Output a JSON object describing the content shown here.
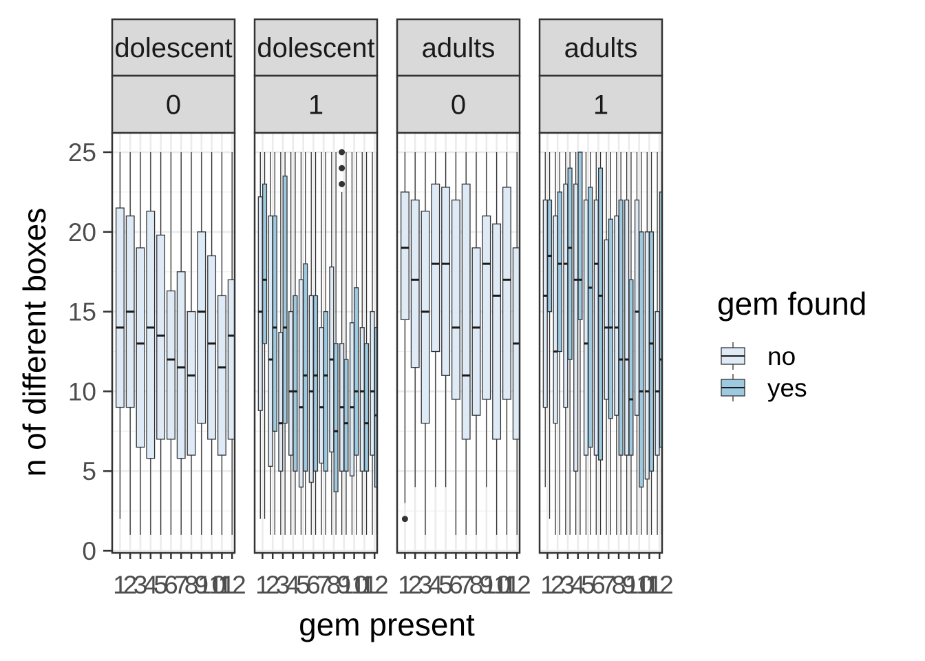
{
  "chart_data": {
    "type": "boxplot",
    "xlabel": "gem present",
    "ylabel": "n of different boxes",
    "ylim": [
      0,
      25.5
    ],
    "yticks": [
      0,
      5,
      10,
      15,
      20,
      25
    ],
    "x_categories": [
      "1",
      "2",
      "3",
      "4",
      "5",
      "6",
      "7",
      "8",
      "9",
      "10",
      "11",
      "12"
    ],
    "x_tick_labels": [
      "1",
      "2",
      "3",
      "4",
      "5",
      "6",
      "7",
      "8",
      "9",
      "10",
      "11",
      "12"
    ],
    "grid": true,
    "legend": {
      "title": "gem found",
      "position": "right",
      "items": [
        {
          "label": "no",
          "color": "#deebf7"
        },
        {
          "label": "yes",
          "color": "#9ecae1"
        }
      ]
    },
    "panels": [
      {
        "strip_top": "dolescent",
        "strip_bottom": "0",
        "series": [
          {
            "group": "no",
            "boxes": [
              {
                "x": 1,
                "min": 2,
                "q1": 9,
                "median": 14,
                "q3": 21.5,
                "max": 25
              },
              {
                "x": 2,
                "min": 1,
                "q1": 9,
                "median": 15,
                "q3": 21,
                "max": 25
              },
              {
                "x": 3,
                "min": 1,
                "q1": 6.5,
                "median": 13,
                "q3": 19,
                "max": 25
              },
              {
                "x": 4,
                "min": 1,
                "q1": 5.8,
                "median": 14,
                "q3": 21.3,
                "max": 25
              },
              {
                "x": 5,
                "min": 1,
                "q1": 7,
                "median": 13.5,
                "q3": 19.8,
                "max": 25
              },
              {
                "x": 6,
                "min": 1,
                "q1": 7,
                "median": 12,
                "q3": 16.3,
                "max": 25
              },
              {
                "x": 7,
                "min": 1,
                "q1": 5.8,
                "median": 11.5,
                "q3": 17.5,
                "max": 25
              },
              {
                "x": 8,
                "min": 1,
                "q1": 6,
                "median": 11,
                "q3": 15,
                "max": 25
              },
              {
                "x": 9,
                "min": 1,
                "q1": 8,
                "median": 15,
                "q3": 20,
                "max": 25
              },
              {
                "x": 10,
                "min": 1,
                "q1": 7,
                "median": 13,
                "q3": 18.5,
                "max": 25
              },
              {
                "x": 11,
                "min": 1,
                "q1": 6,
                "median": 11.5,
                "q3": 16,
                "max": 25
              },
              {
                "x": 12,
                "min": 1,
                "q1": 7,
                "median": 13.5,
                "q3": 17,
                "max": 25
              }
            ]
          }
        ]
      },
      {
        "strip_top": "dolescent",
        "strip_bottom": "1",
        "series": [
          {
            "group": "no",
            "boxes": [
              {
                "x": 1,
                "min": 2,
                "q1": 8.8,
                "median": 15,
                "q3": 22.2,
                "max": 25
              },
              {
                "x": 2,
                "min": 1,
                "q1": 5.3,
                "median": 12,
                "q3": 21,
                "max": 25
              },
              {
                "x": 3,
                "min": 1,
                "q1": 5,
                "median": 8,
                "q3": 13.7,
                "max": 25
              },
              {
                "x": 4,
                "min": 1,
                "q1": 6,
                "median": 10,
                "q3": 15,
                "max": 25
              },
              {
                "x": 5,
                "min": 1,
                "q1": 4,
                "median": 9,
                "q3": 17,
                "max": 25
              },
              {
                "x": 6,
                "min": 1,
                "q1": 4.3,
                "median": 10,
                "q3": 16,
                "max": 25
              },
              {
                "x": 7,
                "min": 1,
                "q1": 5.5,
                "median": 9,
                "q3": 14,
                "max": 25
              },
              {
                "x": 8,
                "min": 1,
                "q1": 6.2,
                "median": 12,
                "q3": 17.8,
                "max": 25
              },
              {
                "x": 9,
                "min": 1,
                "q1": 5,
                "median": 9,
                "q3": 13,
                "max": 22.5,
                "outliers": [
                  23,
                  24,
                  25
                ]
              },
              {
                "x": 10,
                "min": 1,
                "q1": 4.7,
                "median": 9,
                "q3": 14.3,
                "max": 25
              },
              {
                "x": 11,
                "min": 1,
                "q1": 5,
                "median": 10,
                "q3": 14,
                "max": 25
              },
              {
                "x": 12,
                "min": 1,
                "q1": 6,
                "median": 10,
                "q3": 15,
                "max": 25
              }
            ]
          },
          {
            "group": "yes",
            "boxes": [
              {
                "x": 1,
                "min": 2,
                "q1": 13,
                "median": 17,
                "q3": 23,
                "max": 25
              },
              {
                "x": 2,
                "min": 1,
                "q1": 7.5,
                "median": 14,
                "q3": 21,
                "max": 25
              },
              {
                "x": 3,
                "min": 1,
                "q1": 8,
                "median": 14,
                "q3": 23.5,
                "max": 25
              },
              {
                "x": 4,
                "min": 1,
                "q1": 5,
                "median": 10,
                "q3": 16,
                "max": 25
              },
              {
                "x": 5,
                "min": 1,
                "q1": 5,
                "median": 11,
                "q3": 18,
                "max": 25
              },
              {
                "x": 6,
                "min": 1,
                "q1": 5,
                "median": 11,
                "q3": 16,
                "max": 25
              },
              {
                "x": 7,
                "min": 1,
                "q1": 5,
                "median": 11,
                "q3": 15,
                "max": 25
              },
              {
                "x": 8,
                "min": 1,
                "q1": 3.7,
                "median": 7.5,
                "q3": 13,
                "max": 25
              },
              {
                "x": 9,
                "min": 1,
                "q1": 5,
                "median": 8,
                "q3": 12,
                "max": 25
              },
              {
                "x": 10,
                "min": 1,
                "q1": 6,
                "median": 10,
                "q3": 16.5,
                "max": 25
              },
              {
                "x": 11,
                "min": 1,
                "q1": 5,
                "median": 8,
                "q3": 13,
                "max": 25
              },
              {
                "x": 12,
                "min": 1,
                "q1": 4,
                "median": 8.5,
                "q3": 14,
                "max": 25
              }
            ]
          }
        ]
      },
      {
        "strip_top": "adults",
        "strip_bottom": "0",
        "series": [
          {
            "group": "no",
            "boxes": [
              {
                "x": 1,
                "min": 3,
                "q1": 14.5,
                "median": 19,
                "q3": 22.5,
                "max": 25,
                "outliers": [
                  2
                ]
              },
              {
                "x": 2,
                "min": 4,
                "q1": 11.5,
                "median": 17,
                "q3": 22,
                "max": 25
              },
              {
                "x": 3,
                "min": 1,
                "q1": 8,
                "median": 15,
                "q3": 21.3,
                "max": 25
              },
              {
                "x": 4,
                "min": 4,
                "q1": 12.5,
                "median": 18,
                "q3": 23,
                "max": 25
              },
              {
                "x": 5,
                "min": 4,
                "q1": 11,
                "median": 18,
                "q3": 22.8,
                "max": 25
              },
              {
                "x": 6,
                "min": 1,
                "q1": 9.5,
                "median": 14,
                "q3": 22,
                "max": 25
              },
              {
                "x": 7,
                "min": 1,
                "q1": 7,
                "median": 11,
                "q3": 23,
                "max": 25
              },
              {
                "x": 8,
                "min": 1,
                "q1": 8.5,
                "median": 14,
                "q3": 19,
                "max": 25
              },
              {
                "x": 9,
                "min": 4,
                "q1": 9.5,
                "median": 18,
                "q3": 21,
                "max": 25
              },
              {
                "x": 10,
                "min": 1,
                "q1": 7,
                "median": 16,
                "q3": 20.5,
                "max": 25
              },
              {
                "x": 11,
                "min": 1,
                "q1": 9.5,
                "median": 17,
                "q3": 22.8,
                "max": 25
              },
              {
                "x": 12,
                "min": 1,
                "q1": 7,
                "median": 13,
                "q3": 19,
                "max": 25
              }
            ]
          }
        ]
      },
      {
        "strip_top": "adults",
        "strip_bottom": "1",
        "series": [
          {
            "group": "no",
            "boxes": [
              {
                "x": 1,
                "min": 4,
                "q1": 9,
                "median": 16,
                "q3": 22,
                "max": 25
              },
              {
                "x": 2,
                "min": 1,
                "q1": 8,
                "median": 12.5,
                "q3": 21,
                "max": 25
              },
              {
                "x": 3,
                "min": 1,
                "q1": 9,
                "median": 18,
                "q3": 23,
                "max": 25
              },
              {
                "x": 4,
                "min": 1,
                "q1": 5,
                "median": 17,
                "q3": 23,
                "max": 25
              },
              {
                "x": 5,
                "min": 1,
                "q1": 6,
                "median": 13,
                "q3": 22,
                "max": 25
              },
              {
                "x": 6,
                "min": 1,
                "q1": 6,
                "median": 18,
                "q3": 22,
                "max": 25
              },
              {
                "x": 7,
                "min": 1,
                "q1": 9.5,
                "median": 14,
                "q3": 19.5,
                "max": 25
              },
              {
                "x": 8,
                "min": 1,
                "q1": 8.5,
                "median": 14,
                "q3": 21,
                "max": 25
              },
              {
                "x": 9,
                "min": 1,
                "q1": 6,
                "median": 12,
                "q3": 22,
                "max": 25
              },
              {
                "x": 10,
                "min": 1,
                "q1": 8.5,
                "median": 15,
                "q3": 22,
                "max": 25
              },
              {
                "x": 11,
                "min": 1,
                "q1": 4.5,
                "median": 10,
                "q3": 20,
                "max": 25
              },
              {
                "x": 12,
                "min": 1,
                "q1": 6,
                "median": 10,
                "q3": 15,
                "max": 25
              }
            ]
          },
          {
            "group": "yes",
            "boxes": [
              {
                "x": 1,
                "min": 2,
                "q1": 15,
                "median": 18.5,
                "q3": 22,
                "max": 25
              },
              {
                "x": 2,
                "min": 1,
                "q1": 12.5,
                "median": 18,
                "q3": 22.5,
                "max": 25
              },
              {
                "x": 3,
                "min": 1,
                "q1": 12,
                "median": 19,
                "q3": 24,
                "max": 25
              },
              {
                "x": 4,
                "min": 1,
                "q1": 14.5,
                "median": 17,
                "q3": 25,
                "max": 25
              },
              {
                "x": 5,
                "min": 1,
                "q1": 6.5,
                "median": 16.5,
                "q3": 22.8,
                "max": 25
              },
              {
                "x": 6,
                "min": 1,
                "q1": 5.7,
                "median": 16,
                "q3": 24,
                "max": 25
              },
              {
                "x": 7,
                "min": 1,
                "q1": 8.3,
                "median": 14,
                "q3": 20.8,
                "max": 25
              },
              {
                "x": 8,
                "min": 1,
                "q1": 6,
                "median": 12,
                "q3": 22,
                "max": 25
              },
              {
                "x": 9,
                "min": 1,
                "q1": 6,
                "median": 9.5,
                "q3": 17,
                "max": 25
              },
              {
                "x": 10,
                "min": 1,
                "q1": 4,
                "median": 10,
                "q3": 20,
                "max": 25
              },
              {
                "x": 11,
                "min": 1,
                "q1": 5,
                "median": 13,
                "q3": 20,
                "max": 25
              },
              {
                "x": 12,
                "min": 1,
                "q1": 6.5,
                "median": 12,
                "q3": 22.5,
                "max": 25
              }
            ]
          }
        ]
      }
    ]
  }
}
